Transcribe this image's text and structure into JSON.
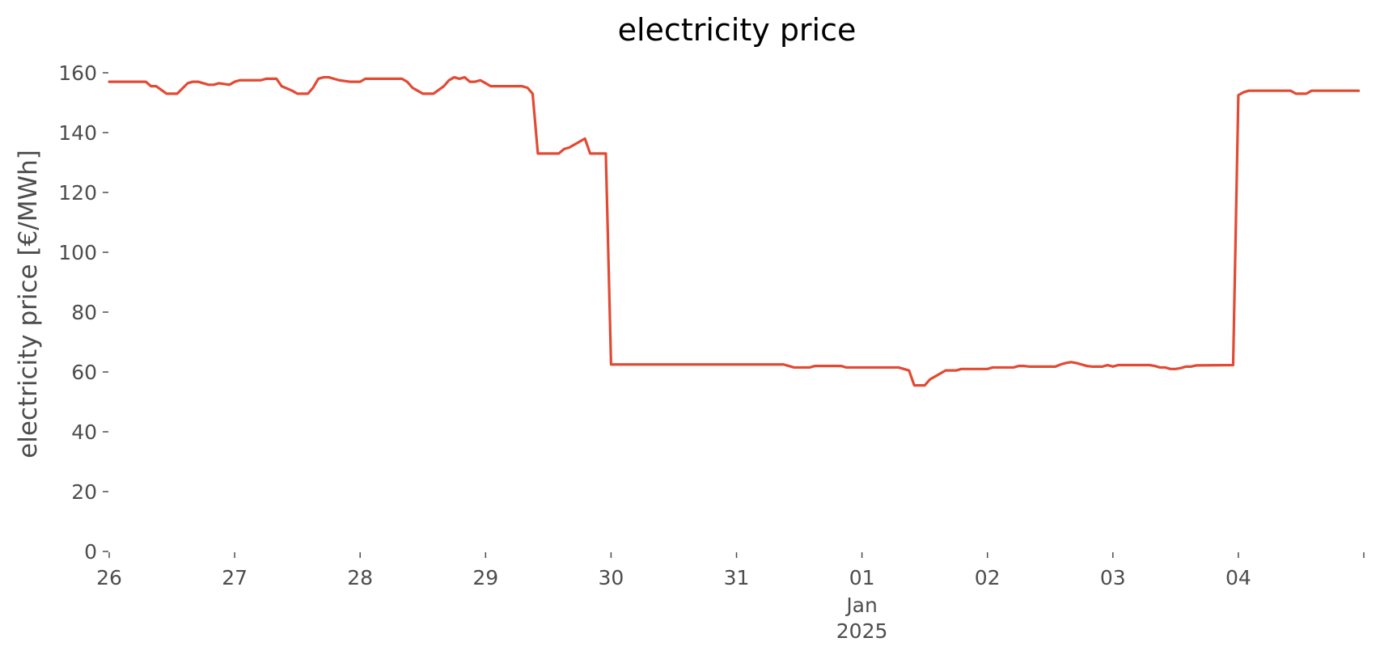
{
  "chart_data": {
    "type": "line",
    "title": "electricity price",
    "xlabel": "",
    "ylabel": "electricity price [€/MWh]",
    "x_unit": "hours since 2024-12-26 00:00",
    "xlim": [
      0,
      239
    ],
    "ylim": [
      0,
      160
    ],
    "yticks": [
      0,
      20,
      40,
      60,
      80,
      100,
      120,
      140,
      160
    ],
    "xticks": [
      {
        "x": 0,
        "label": "26"
      },
      {
        "x": 24,
        "label": "27"
      },
      {
        "x": 48,
        "label": "28"
      },
      {
        "x": 72,
        "label": "29"
      },
      {
        "x": 96,
        "label": "30"
      },
      {
        "x": 120,
        "label": "31"
      },
      {
        "x": 144,
        "label": "01",
        "sublabel": "Jan",
        "sublabel2": "2025"
      },
      {
        "x": 168,
        "label": "02"
      },
      {
        "x": 192,
        "label": "03"
      },
      {
        "x": 216,
        "label": "04"
      },
      {
        "x": 240,
        "label": ""
      }
    ],
    "grid": false,
    "legend": "none",
    "colors": {
      "line": "#E24A33",
      "text": "#4D4D4D",
      "title": "#000000"
    },
    "series": [
      {
        "name": "",
        "points": [
          [
            0,
            157
          ],
          [
            7,
            157
          ],
          [
            8,
            155.5
          ],
          [
            9,
            155.5
          ],
          [
            11,
            153
          ],
          [
            13,
            153
          ],
          [
            15,
            156.5
          ],
          [
            16,
            157
          ],
          [
            17,
            157
          ],
          [
            18,
            156.5
          ],
          [
            19,
            156
          ],
          [
            20,
            156
          ],
          [
            21,
            156.5
          ],
          [
            23,
            156
          ],
          [
            24,
            157
          ],
          [
            25,
            157.5
          ],
          [
            29,
            157.5
          ],
          [
            30,
            158
          ],
          [
            32,
            158
          ],
          [
            33,
            155.5
          ],
          [
            35,
            154
          ],
          [
            36,
            153
          ],
          [
            38,
            153
          ],
          [
            39,
            155
          ],
          [
            40,
            158
          ],
          [
            41,
            158.5
          ],
          [
            42,
            158.5
          ],
          [
            44,
            157.5
          ],
          [
            46,
            157
          ],
          [
            48,
            157
          ],
          [
            49,
            158
          ],
          [
            56,
            158
          ],
          [
            57,
            157
          ],
          [
            58,
            155
          ],
          [
            59,
            154
          ],
          [
            60,
            153
          ],
          [
            62,
            153
          ],
          [
            64,
            155.5
          ],
          [
            65,
            157.5
          ],
          [
            66,
            158.5
          ],
          [
            67,
            158
          ],
          [
            68,
            158.5
          ],
          [
            69,
            157
          ],
          [
            70,
            157
          ],
          [
            71,
            157.5
          ],
          [
            72,
            156.5
          ],
          [
            73,
            155.5
          ],
          [
            79,
            155.5
          ],
          [
            80,
            155
          ],
          [
            81,
            153
          ],
          [
            82,
            133
          ],
          [
            86,
            133
          ],
          [
            87,
            134.5
          ],
          [
            88,
            135
          ],
          [
            89,
            136
          ],
          [
            90,
            137
          ],
          [
            91,
            138
          ],
          [
            92,
            133
          ],
          [
            95,
            133
          ],
          [
            96,
            62.5
          ],
          [
            129,
            62.5
          ],
          [
            130,
            62
          ],
          [
            131,
            61.5
          ],
          [
            134,
            61.5
          ],
          [
            135,
            62
          ],
          [
            140,
            62
          ],
          [
            141,
            61.5
          ],
          [
            151,
            61.5
          ],
          [
            153,
            60.5
          ],
          [
            154,
            55.5
          ],
          [
            156,
            55.5
          ],
          [
            157,
            57.5
          ],
          [
            158,
            58.5
          ],
          [
            160,
            60.5
          ],
          [
            162,
            60.5
          ],
          [
            163,
            61
          ],
          [
            168,
            61
          ],
          [
            169,
            61.5
          ],
          [
            173,
            61.5
          ],
          [
            174,
            62
          ],
          [
            175,
            62
          ],
          [
            176,
            61.8
          ],
          [
            181,
            61.8
          ],
          [
            182,
            62.5
          ],
          [
            183,
            63
          ],
          [
            184,
            63.3
          ],
          [
            185,
            63
          ],
          [
            186,
            62.5
          ],
          [
            187,
            62
          ],
          [
            188,
            61.8
          ],
          [
            190,
            61.8
          ],
          [
            191,
            62.3
          ],
          [
            192,
            61.8
          ],
          [
            193,
            62.3
          ],
          [
            199,
            62.3
          ],
          [
            200,
            62
          ],
          [
            201,
            61.5
          ],
          [
            202,
            61.5
          ],
          [
            203,
            61
          ],
          [
            204,
            61
          ],
          [
            205,
            61.3
          ],
          [
            206,
            61.8
          ],
          [
            207,
            61.8
          ],
          [
            208,
            62.2
          ],
          [
            215,
            62.3
          ],
          [
            216,
            152.5
          ],
          [
            217,
            153.5
          ],
          [
            218,
            154
          ],
          [
            226,
            154
          ],
          [
            227,
            153
          ],
          [
            229,
            153
          ],
          [
            230,
            154
          ],
          [
            239,
            154
          ]
        ]
      }
    ]
  }
}
